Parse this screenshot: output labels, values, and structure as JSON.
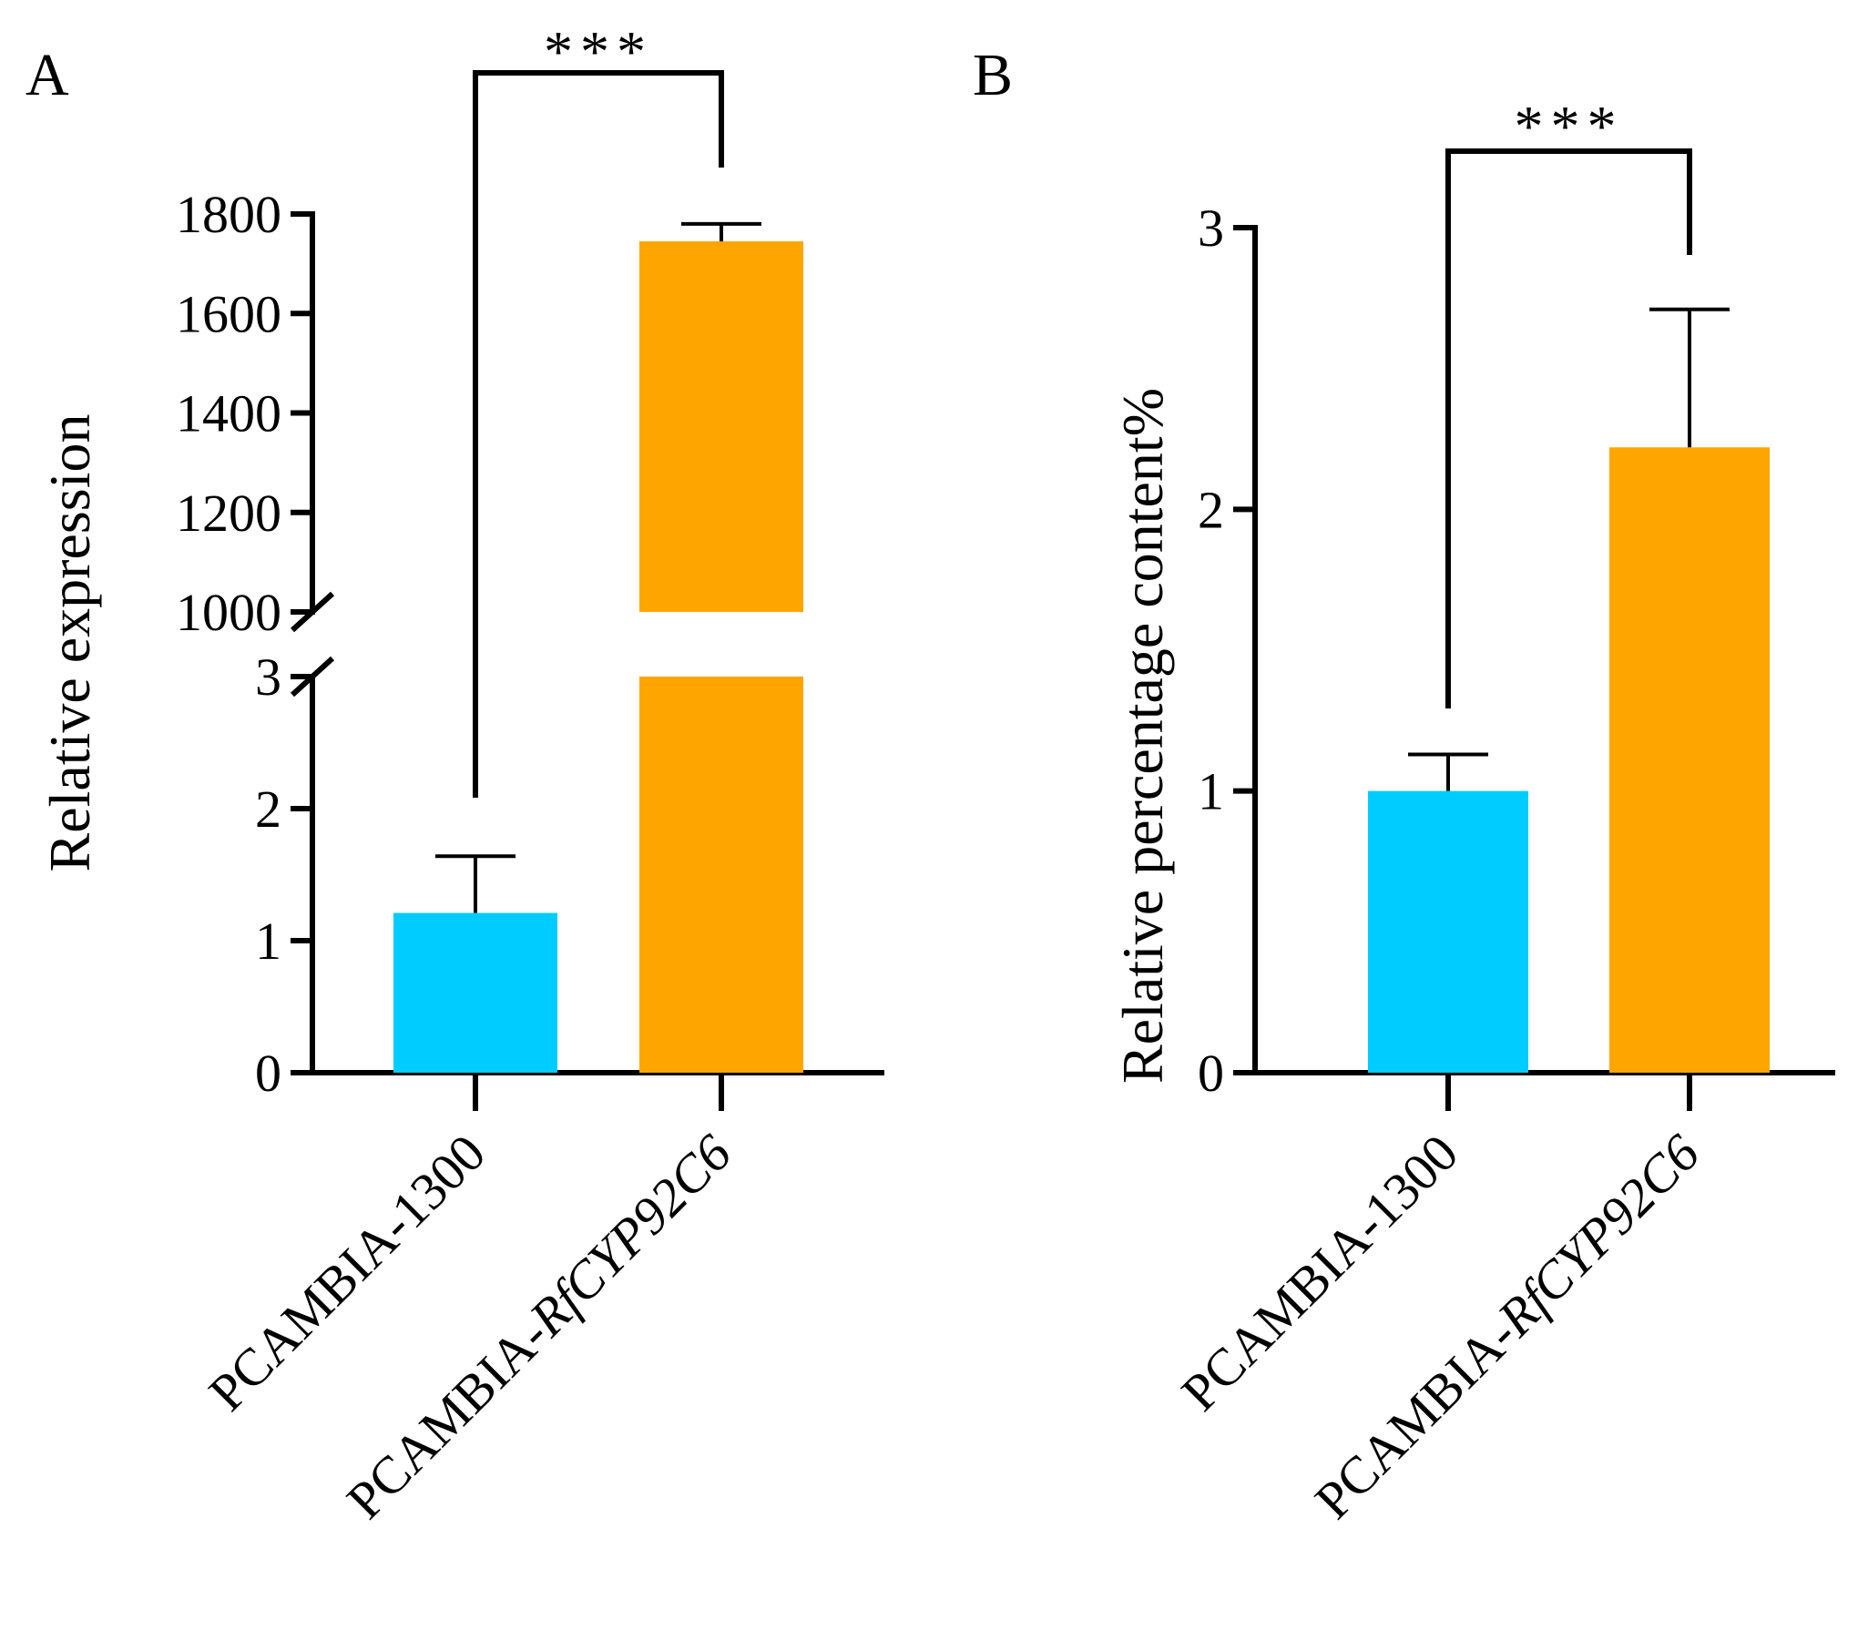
{
  "chart_data": [
    {
      "panel": "A",
      "type": "bar",
      "ylabel": "Relative expression",
      "categories": [
        "PCAMBIA-1300",
        "PCAMBIA-RfCYP92C6"
      ],
      "category_parts": [
        {
          "plain": "PCAMBIA-1300",
          "italic": ""
        },
        {
          "plain": "PCAMBIA-",
          "italic": "RfCYP92C6"
        }
      ],
      "values": [
        1.21,
        1745
      ],
      "errors": [
        0.43,
        35
      ],
      "colors": [
        "#00CCFF",
        "#FFA500"
      ],
      "y_axis_break": true,
      "lower_segment": {
        "ylim": [
          0,
          3
        ],
        "ticks": [
          "0",
          "1",
          "2",
          "3"
        ]
      },
      "upper_segment": {
        "ylim": [
          1000,
          1800
        ],
        "ticks": [
          "1000",
          "1200",
          "1400",
          "1600",
          "1800"
        ]
      },
      "significance": "***"
    },
    {
      "panel": "B",
      "type": "bar",
      "ylabel": "Relative percentage content%",
      "categories": [
        "PCAMBIA-1300",
        "PCAMBIA-RfCYP92C6"
      ],
      "category_parts": [
        {
          "plain": "PCAMBIA-1300",
          "italic": ""
        },
        {
          "plain": "PCAMBIA-",
          "italic": "RfCYP92C6"
        }
      ],
      "values": [
        1.0,
        2.22
      ],
      "errors": [
        0.13,
        0.49
      ],
      "colors": [
        "#00CCFF",
        "#FFA500"
      ],
      "ylim": [
        0,
        3
      ],
      "ticks": [
        "0",
        "1",
        "2",
        "3"
      ],
      "significance": "***"
    }
  ]
}
